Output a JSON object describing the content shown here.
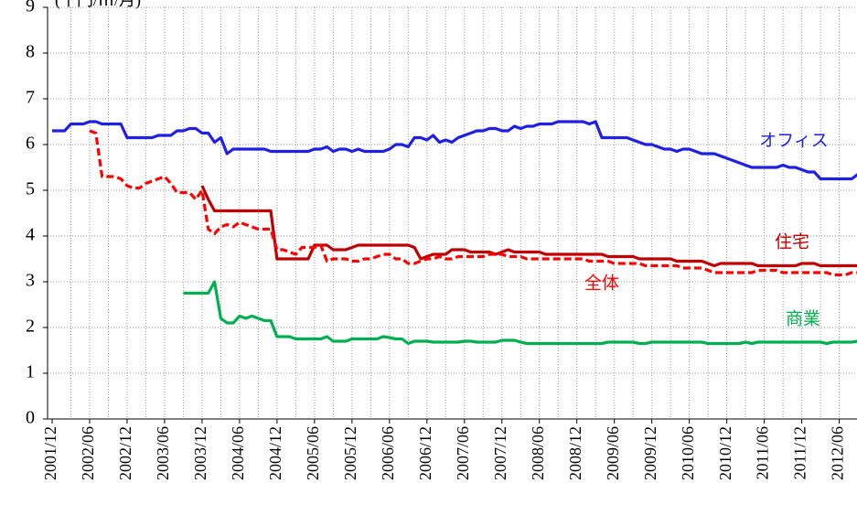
{
  "chart_data": {
    "type": "line",
    "y_label": "(千円/㎡/月)",
    "x": [
      "2001/12",
      null,
      null,
      null,
      null,
      null,
      "2002/06",
      null,
      null,
      null,
      null,
      null,
      "2002/12",
      null,
      null,
      null,
      null,
      null,
      "2003/06",
      null,
      null,
      null,
      null,
      null,
      "2003/12",
      null,
      null,
      null,
      null,
      null,
      "2004/06",
      null,
      null,
      null,
      null,
      null,
      "2004/12",
      null,
      null,
      null,
      null,
      null,
      "2005/06",
      null,
      null,
      null,
      null,
      null,
      "2005/12",
      null,
      null,
      null,
      null,
      null,
      "2006/06",
      null,
      null,
      null,
      null,
      null,
      "2006/12",
      null,
      null,
      null,
      null,
      null,
      "2007/06",
      null,
      null,
      null,
      null,
      null,
      "2007/12",
      null,
      null,
      null,
      null,
      null,
      "2008/06",
      null,
      null,
      null,
      null,
      null,
      "2008/12",
      null,
      null,
      null,
      null,
      null,
      "2009/06",
      null,
      null,
      null,
      null,
      null,
      "2009/12",
      null,
      null,
      null,
      null,
      null,
      "2010/06",
      null,
      null,
      null,
      null,
      null,
      "2010/12",
      null,
      null,
      null,
      null,
      null,
      "2011/06",
      null,
      null,
      null,
      null,
      null,
      "2011/12",
      null,
      null,
      null,
      null,
      null,
      "2012/06",
      null,
      null,
      null
    ],
    "series": [
      {
        "name": "オフィス",
        "color": "#1f1fe6",
        "line_style": "solid",
        "values": [
          6.3,
          6.3,
          6.3,
          6.45,
          6.45,
          6.45,
          6.5,
          6.5,
          6.45,
          6.45,
          6.45,
          6.45,
          6.15,
          6.15,
          6.15,
          6.15,
          6.15,
          6.2,
          6.2,
          6.2,
          6.3,
          6.3,
          6.35,
          6.35,
          6.25,
          6.25,
          6.05,
          6.15,
          5.8,
          5.9,
          5.9,
          5.9,
          5.9,
          5.9,
          5.9,
          5.85,
          5.85,
          5.85,
          5.85,
          5.85,
          5.85,
          5.85,
          5.9,
          5.9,
          5.95,
          5.85,
          5.9,
          5.9,
          5.85,
          5.9,
          5.85,
          5.85,
          5.85,
          5.85,
          5.9,
          6.0,
          6.0,
          5.95,
          6.15,
          6.15,
          6.1,
          6.2,
          6.05,
          6.1,
          6.05,
          6.15,
          6.2,
          6.25,
          6.3,
          6.3,
          6.35,
          6.35,
          6.3,
          6.3,
          6.4,
          6.35,
          6.4,
          6.4,
          6.45,
          6.45,
          6.45,
          6.5,
          6.5,
          6.5,
          6.5,
          6.5,
          6.45,
          6.5,
          6.15,
          6.15,
          6.15,
          6.15,
          6.15,
          6.1,
          6.05,
          6.0,
          6.0,
          5.95,
          5.9,
          5.9,
          5.85,
          5.9,
          5.9,
          5.85,
          5.8,
          5.8,
          5.8,
          5.75,
          5.7,
          5.65,
          5.6,
          5.55,
          5.5,
          5.5,
          5.5,
          5.5,
          5.5,
          5.55,
          5.5,
          5.5,
          5.45,
          5.4,
          5.4,
          5.25,
          5.25,
          5.25,
          5.25,
          5.25,
          5.25,
          5.35
        ]
      },
      {
        "name": "住宅",
        "color": "#c00000",
        "line_style": "solid",
        "values": [
          null,
          null,
          null,
          null,
          null,
          null,
          null,
          null,
          null,
          null,
          null,
          null,
          null,
          null,
          null,
          null,
          null,
          null,
          null,
          null,
          null,
          null,
          null,
          null,
          5.1,
          4.8,
          4.55,
          4.55,
          4.55,
          4.55,
          4.55,
          4.55,
          4.55,
          4.55,
          4.55,
          4.55,
          3.5,
          3.5,
          3.5,
          3.5,
          3.5,
          3.5,
          3.8,
          3.8,
          3.8,
          3.7,
          3.7,
          3.7,
          3.75,
          3.8,
          3.8,
          3.8,
          3.8,
          3.8,
          3.8,
          3.8,
          3.8,
          3.8,
          3.75,
          3.5,
          3.55,
          3.6,
          3.6,
          3.6,
          3.7,
          3.7,
          3.7,
          3.65,
          3.65,
          3.65,
          3.65,
          3.6,
          3.65,
          3.7,
          3.65,
          3.65,
          3.65,
          3.65,
          3.65,
          3.6,
          3.6,
          3.6,
          3.6,
          3.6,
          3.6,
          3.6,
          3.6,
          3.6,
          3.6,
          3.55,
          3.55,
          3.55,
          3.55,
          3.55,
          3.5,
          3.5,
          3.5,
          3.5,
          3.5,
          3.5,
          3.45,
          3.45,
          3.45,
          3.45,
          3.45,
          3.4,
          3.35,
          3.4,
          3.4,
          3.4,
          3.4,
          3.4,
          3.4,
          3.35,
          3.35,
          3.35,
          3.35,
          3.35,
          3.35,
          3.35,
          3.4,
          3.4,
          3.4,
          3.35,
          3.35,
          3.35,
          3.35,
          3.35,
          3.35,
          3.35
        ]
      },
      {
        "name": "全体",
        "color": "#ff0000",
        "line_style": "dashed",
        "values": [
          null,
          null,
          null,
          null,
          null,
          null,
          6.3,
          6.25,
          5.3,
          5.3,
          5.3,
          5.25,
          5.1,
          5.05,
          5.05,
          5.15,
          5.2,
          5.25,
          5.3,
          5.15,
          4.95,
          4.95,
          4.95,
          4.8,
          5.0,
          4.15,
          4.05,
          4.2,
          4.25,
          4.2,
          4.3,
          4.25,
          4.2,
          4.15,
          4.15,
          4.15,
          3.7,
          3.7,
          3.65,
          3.6,
          3.75,
          3.75,
          3.75,
          3.8,
          3.45,
          3.5,
          3.5,
          3.5,
          3.45,
          3.45,
          3.5,
          3.5,
          3.55,
          3.6,
          3.6,
          3.5,
          3.5,
          3.4,
          3.4,
          3.45,
          3.5,
          3.5,
          3.55,
          3.5,
          3.5,
          3.55,
          3.55,
          3.55,
          3.55,
          3.55,
          3.6,
          3.6,
          3.6,
          3.55,
          3.55,
          3.55,
          3.5,
          3.5,
          3.5,
          3.5,
          3.5,
          3.5,
          3.5,
          3.5,
          3.5,
          3.5,
          3.45,
          3.45,
          3.45,
          3.45,
          3.4,
          3.4,
          3.4,
          3.4,
          3.4,
          3.35,
          3.35,
          3.35,
          3.35,
          3.35,
          3.35,
          3.3,
          3.3,
          3.3,
          3.3,
          3.25,
          3.2,
          3.2,
          3.2,
          3.2,
          3.2,
          3.2,
          3.2,
          3.25,
          3.25,
          3.25,
          3.25,
          3.2,
          3.2,
          3.2,
          3.2,
          3.2,
          3.2,
          3.2,
          3.2,
          3.15,
          3.15,
          3.15,
          3.2,
          3.2
        ]
      },
      {
        "name": "商業",
        "color": "#00b050",
        "line_style": "solid",
        "values": [
          null,
          null,
          null,
          null,
          null,
          null,
          null,
          null,
          null,
          null,
          null,
          null,
          null,
          null,
          null,
          null,
          null,
          null,
          null,
          null,
          null,
          2.75,
          2.75,
          2.75,
          2.75,
          2.75,
          3.0,
          2.2,
          2.1,
          2.1,
          2.25,
          2.2,
          2.25,
          2.2,
          2.15,
          2.15,
          1.8,
          1.8,
          1.8,
          1.75,
          1.75,
          1.75,
          1.75,
          1.75,
          1.8,
          1.7,
          1.7,
          1.7,
          1.75,
          1.75,
          1.75,
          1.75,
          1.75,
          1.8,
          1.78,
          1.75,
          1.75,
          1.65,
          1.7,
          1.7,
          1.7,
          1.68,
          1.68,
          1.68,
          1.68,
          1.68,
          1.7,
          1.7,
          1.68,
          1.68,
          1.68,
          1.68,
          1.72,
          1.72,
          1.72,
          1.68,
          1.65,
          1.65,
          1.65,
          1.65,
          1.65,
          1.65,
          1.65,
          1.65,
          1.65,
          1.65,
          1.65,
          1.65,
          1.65,
          1.68,
          1.68,
          1.68,
          1.68,
          1.68,
          1.65,
          1.65,
          1.68,
          1.68,
          1.68,
          1.68,
          1.68,
          1.68,
          1.68,
          1.68,
          1.68,
          1.65,
          1.65,
          1.65,
          1.65,
          1.65,
          1.65,
          1.68,
          1.65,
          1.68,
          1.68,
          1.68,
          1.68,
          1.68,
          1.68,
          1.68,
          1.68,
          1.68,
          1.68,
          1.68,
          1.65,
          1.68,
          1.68,
          1.68,
          1.68,
          1.7
        ]
      }
    ],
    "ylim": [
      0,
      9
    ],
    "yticks": [
      0,
      1,
      2,
      3,
      4,
      5,
      6,
      7,
      8,
      9
    ],
    "grid": true
  }
}
